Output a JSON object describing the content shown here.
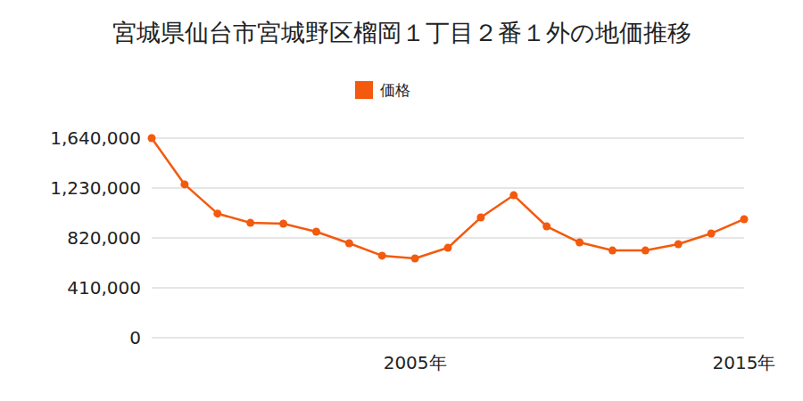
{
  "chart_data": {
    "type": "line",
    "title": "宮城県仙台市宮城野区榴岡１丁目２番１外の地価推移",
    "categories": [
      null,
      null,
      null,
      null,
      null,
      null,
      null,
      null,
      "2005年",
      null,
      null,
      null,
      null,
      null,
      null,
      null,
      null,
      null,
      "2015年"
    ],
    "series": [
      {
        "name": "価格",
        "color": "#f35a0e",
        "marker": "circle",
        "values": [
          1640000,
          1260000,
          1020000,
          944000,
          937000,
          871000,
          776000,
          674000,
          652000,
          739000,
          988000,
          1171000,
          915000,
          783000,
          717000,
          717000,
          769000,
          857000,
          974000
        ]
      }
    ],
    "ylim": [
      0,
      1640000
    ],
    "yticks": [
      0,
      {
        "value": 410000,
        "label": "410,000"
      },
      {
        "value": 820000,
        "label": "820,000"
      },
      {
        "value": 1230000,
        "label": "1,230,000"
      },
      {
        "value": 1640000,
        "label": "1,640,000"
      }
    ],
    "grid": true,
    "legend": "top"
  }
}
